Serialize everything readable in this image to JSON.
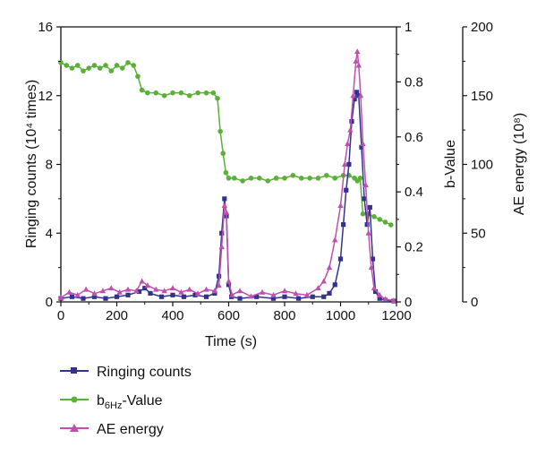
{
  "chart_data": {
    "type": "line",
    "xlabel": "Time (s)",
    "ylabel": "Ringing counts (10⁴ times)",
    "y2label": "b-Value",
    "y3label": "AE energy (10⁸)",
    "xlim": [
      0,
      1200
    ],
    "ylim": [
      0,
      16
    ],
    "y2lim": [
      0,
      1
    ],
    "y3lim": [
      0,
      200
    ],
    "xticks": [
      "0",
      "200",
      "400",
      "600",
      "800",
      "1000",
      "1200"
    ],
    "yticks": [
      "0",
      "4",
      "8",
      "12",
      "16"
    ],
    "y2ticks": [
      "0",
      "0.2",
      "0.4",
      "0.6",
      "0.8",
      "1"
    ],
    "y3ticks": [
      "0",
      "50",
      "100",
      "150",
      "200"
    ],
    "legend_position": "bottom-left",
    "colors": {
      "ringing": "#33338f",
      "bvalue": "#5ab038",
      "energy": "#c04fb0"
    },
    "series": [
      {
        "name": "Ringing counts",
        "axis": "left",
        "marker": "square",
        "color": "#33338f",
        "x": [
          0,
          40,
          80,
          120,
          160,
          200,
          240,
          280,
          300,
          320,
          360,
          400,
          440,
          480,
          520,
          550,
          565,
          575,
          585,
          592,
          600,
          610,
          640,
          700,
          760,
          800,
          850,
          900,
          940,
          960,
          980,
          1000,
          1010,
          1020,
          1030,
          1040,
          1050,
          1058,
          1065,
          1075,
          1085,
          1095,
          1105,
          1115,
          1125,
          1140,
          1160,
          1190
        ],
        "y": [
          0.2,
          0.3,
          0.2,
          0.3,
          0.2,
          0.3,
          0.4,
          0.6,
          0.8,
          0.5,
          0.3,
          0.4,
          0.3,
          0.4,
          0.3,
          0.5,
          1.5,
          4.0,
          6.0,
          5.0,
          1.0,
          0.3,
          0.2,
          0.3,
          0.2,
          0.3,
          0.2,
          0.3,
          0.3,
          0.5,
          1.0,
          2.5,
          4.5,
          6.5,
          8.0,
          10.5,
          11.8,
          12.2,
          12.0,
          9.0,
          6.0,
          4.5,
          5.5,
          2.5,
          0.6,
          0.2,
          0.1,
          0.05
        ]
      },
      {
        "name": "b6Hz-Value",
        "axis": "right1",
        "marker": "circle",
        "color": "#5ab038",
        "x": [
          0,
          20,
          40,
          60,
          80,
          100,
          120,
          140,
          160,
          180,
          200,
          220,
          240,
          260,
          275,
          290,
          310,
          340,
          370,
          400,
          430,
          460,
          490,
          520,
          545,
          560,
          570,
          580,
          590,
          600,
          620,
          650,
          680,
          710,
          740,
          770,
          800,
          830,
          860,
          890,
          920,
          950,
          980,
          1010,
          1030,
          1050,
          1060,
          1070,
          1080,
          1100,
          1120,
          1140,
          1160,
          1180
        ],
        "y": [
          0.87,
          0.86,
          0.85,
          0.86,
          0.84,
          0.85,
          0.86,
          0.85,
          0.86,
          0.84,
          0.86,
          0.85,
          0.87,
          0.86,
          0.82,
          0.77,
          0.76,
          0.76,
          0.75,
          0.76,
          0.76,
          0.75,
          0.76,
          0.76,
          0.76,
          0.74,
          0.62,
          0.54,
          0.47,
          0.45,
          0.45,
          0.44,
          0.45,
          0.45,
          0.44,
          0.45,
          0.45,
          0.46,
          0.45,
          0.45,
          0.45,
          0.46,
          0.45,
          0.46,
          0.46,
          0.45,
          0.44,
          0.45,
          0.32,
          0.32,
          0.31,
          0.3,
          0.29,
          0.28
        ]
      },
      {
        "name": "AE energy",
        "axis": "right2",
        "marker": "triangle",
        "color": "#c04fb0",
        "x": [
          0,
          30,
          60,
          90,
          120,
          150,
          180,
          210,
          240,
          270,
          290,
          310,
          340,
          370,
          400,
          430,
          460,
          490,
          520,
          550,
          565,
          575,
          585,
          592,
          600,
          612,
          640,
          680,
          720,
          760,
          800,
          840,
          880,
          920,
          940,
          960,
          980,
          1000,
          1015,
          1025,
          1035,
          1045,
          1055,
          1060,
          1065,
          1072,
          1080,
          1090,
          1100,
          1110,
          1120,
          1140,
          1160,
          1190
        ],
        "y": [
          3,
          7,
          5,
          9,
          6,
          8,
          10,
          7,
          9,
          8,
          15,
          12,
          9,
          8,
          10,
          7,
          9,
          6,
          9,
          8,
          12,
          40,
          70,
          65,
          15,
          5,
          8,
          4,
          7,
          5,
          8,
          6,
          5,
          10,
          15,
          25,
          45,
          70,
          100,
          115,
          125,
          150,
          175,
          182,
          172,
          150,
          115,
          85,
          50,
          25,
          10,
          5,
          2,
          1
        ]
      }
    ]
  },
  "legend": {
    "items": [
      {
        "label": "Ringing counts",
        "color": "#33338f",
        "marker": "square"
      },
      {
        "label": "b",
        "sub": "6Hz",
        "suffix": "-Value",
        "color": "#5ab038",
        "marker": "circle"
      },
      {
        "label": "AE energy",
        "color": "#c04fb0",
        "marker": "triangle"
      }
    ]
  }
}
